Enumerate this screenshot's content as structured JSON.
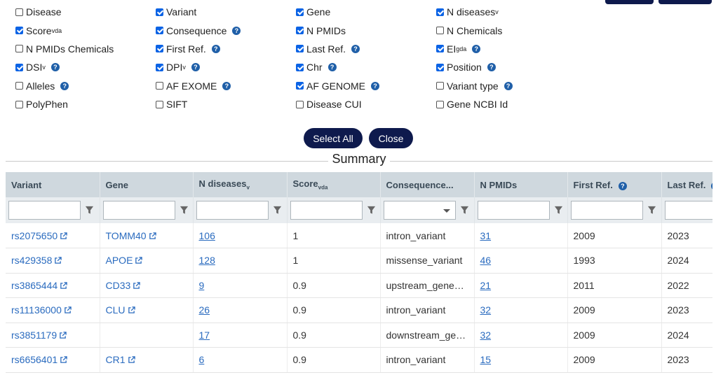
{
  "options": [
    [
      {
        "label": "Disease",
        "sub": "",
        "checked": false,
        "help": false
      },
      {
        "label": "Variant",
        "sub": "",
        "checked": true,
        "help": false
      },
      {
        "label": "Gene",
        "sub": "",
        "checked": true,
        "help": false
      },
      {
        "label": "N diseases",
        "sub": "v",
        "checked": true,
        "help": false
      }
    ],
    [
      {
        "label": "Score",
        "sub": "vda",
        "checked": true,
        "help": false
      },
      {
        "label": "Consequence",
        "sub": "",
        "checked": true,
        "help": true
      },
      {
        "label": "N PMIDs",
        "sub": "",
        "checked": true,
        "help": false
      },
      {
        "label": "N Chemicals",
        "sub": "",
        "checked": false,
        "help": false
      }
    ],
    [
      {
        "label": "N PMIDs Chemicals",
        "sub": "",
        "checked": false,
        "help": false
      },
      {
        "label": "First Ref.",
        "sub": "",
        "checked": true,
        "help": true
      },
      {
        "label": "Last Ref.",
        "sub": "",
        "checked": true,
        "help": true
      },
      {
        "label": "EI",
        "sub": "gda",
        "checked": true,
        "help": true
      }
    ],
    [
      {
        "label": "DSI",
        "sub": "v",
        "checked": true,
        "help": true
      },
      {
        "label": "DPI",
        "sub": "v",
        "checked": true,
        "help": true
      },
      {
        "label": "Chr",
        "sub": "",
        "checked": true,
        "help": true
      },
      {
        "label": "Position",
        "sub": "",
        "checked": true,
        "help": true
      }
    ],
    [
      {
        "label": "Alleles",
        "sub": "",
        "checked": false,
        "help": true
      },
      {
        "label": "AF EXOME",
        "sub": "",
        "checked": false,
        "help": true
      },
      {
        "label": "AF GENOME",
        "sub": "",
        "checked": true,
        "help": true
      },
      {
        "label": "Variant type",
        "sub": "",
        "checked": false,
        "help": true
      }
    ],
    [
      {
        "label": "PolyPhen",
        "sub": "",
        "checked": false,
        "help": false
      },
      {
        "label": "SIFT",
        "sub": "",
        "checked": false,
        "help": false
      },
      {
        "label": "Disease CUI",
        "sub": "",
        "checked": false,
        "help": false
      },
      {
        "label": "Gene NCBI Id",
        "sub": "",
        "checked": false,
        "help": false
      }
    ]
  ],
  "buttons": {
    "select_all": "Select All",
    "close": "Close"
  },
  "summary_title": "Summary",
  "help_glyph": "?",
  "table": {
    "headers": [
      {
        "label": "Variant",
        "sub": "",
        "help": false
      },
      {
        "label": "Gene",
        "sub": "",
        "help": false
      },
      {
        "label": "N diseases",
        "sub": "v",
        "help": false
      },
      {
        "label": "Score",
        "sub": "vda",
        "help": false
      },
      {
        "label": "Consequence...",
        "sub": "",
        "help": false
      },
      {
        "label": "N PMIDs",
        "sub": "",
        "help": false
      },
      {
        "label": "First Ref.",
        "sub": "",
        "help": true
      },
      {
        "label": "Last Ref.",
        "sub": "",
        "help": true
      }
    ],
    "rows": [
      {
        "variant": "rs2075650",
        "gene": "TOMM40",
        "n_diseases": "106",
        "score": "1",
        "consequence": "intron_variant",
        "n_pmids": "31",
        "first_ref": "2009",
        "last_ref": "2023"
      },
      {
        "variant": "rs429358",
        "gene": "APOE",
        "n_diseases": "128",
        "score": "1",
        "consequence": "missense_variant",
        "n_pmids": "46",
        "first_ref": "1993",
        "last_ref": "2024"
      },
      {
        "variant": "rs3865444",
        "gene": "CD33",
        "n_diseases": "9",
        "score": "0.9",
        "consequence": "upstream_gene_variant",
        "n_pmids": "21",
        "first_ref": "2011",
        "last_ref": "2022"
      },
      {
        "variant": "rs11136000",
        "gene": "CLU",
        "n_diseases": "26",
        "score": "0.9",
        "consequence": "intron_variant",
        "n_pmids": "32",
        "first_ref": "2009",
        "last_ref": "2023"
      },
      {
        "variant": "rs3851179",
        "gene": "",
        "n_diseases": "17",
        "score": "0.9",
        "consequence": "downstream_gene_variant",
        "n_pmids": "32",
        "first_ref": "2009",
        "last_ref": "2024"
      },
      {
        "variant": "rs6656401",
        "gene": "CR1",
        "n_diseases": "6",
        "score": "0.9",
        "consequence": "intron_variant",
        "n_pmids": "15",
        "first_ref": "2009",
        "last_ref": "2023"
      }
    ]
  },
  "colors": {
    "navy": "#0e1a4d",
    "link": "#2a6bbf",
    "header_bg": "#cfd8de",
    "checkbox_blue": "#0b63e5"
  }
}
